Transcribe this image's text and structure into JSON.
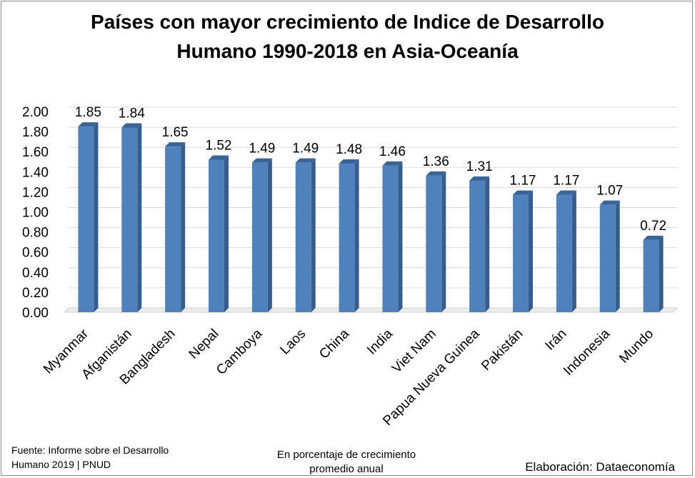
{
  "chart_data": {
    "type": "bar",
    "title_line1": "Países con mayor crecimiento de Indice de Desarrollo",
    "title_line2": "Humano 1990-2018 en Asia-Oceanía",
    "categories": [
      "Myanmar",
      "Afganistán",
      "Bangladesh",
      "Nepal",
      "Camboya",
      "Laos",
      "China",
      "India",
      "Viet Nam",
      "Papua Nueva Guinea",
      "Pakistán",
      "Irán",
      "Indonesia",
      "Mundo"
    ],
    "values": [
      1.85,
      1.84,
      1.65,
      1.52,
      1.49,
      1.49,
      1.48,
      1.46,
      1.36,
      1.31,
      1.17,
      1.17,
      1.07,
      0.72
    ],
    "data_labels": [
      "1.85",
      "1.84",
      "1.65",
      "1.52",
      "1.49",
      "1.49",
      "1.48",
      "1.46",
      "1.36",
      "1.31",
      "1.17",
      "1.17",
      "1.07",
      "0.72"
    ],
    "yticks": [
      "0.00",
      "0.20",
      "0.40",
      "0.60",
      "0.80",
      "1.00",
      "1.20",
      "1.40",
      "1.60",
      "1.80",
      "2.00"
    ],
    "ylim": [
      0,
      2.0
    ],
    "grid": true,
    "bar_color": "#4f81bd",
    "bar_side_color": "#385d8a",
    "bar_top_color": "#3b6496"
  },
  "footer": {
    "source_line1": "Fuente: Informe sobre el Desarrollo",
    "source_line2": "Humano 2019 | PNUD",
    "unit_line1": "En porcentaje de crecimiento",
    "unit_line2": "promedio anual",
    "credit": "Elaboración: Dataeconomía"
  }
}
